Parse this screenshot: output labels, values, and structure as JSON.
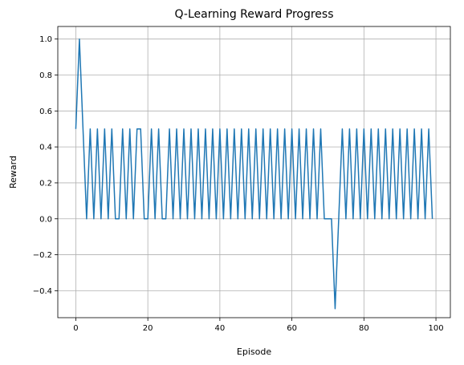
{
  "chart_data": {
    "type": "line",
    "title": "Q-Learning Reward Progress",
    "xlabel": "Episode",
    "ylabel": "Reward",
    "xlim": [
      -5,
      104
    ],
    "ylim": [
      -0.55,
      1.07
    ],
    "xticks": [
      0,
      20,
      40,
      60,
      80,
      100
    ],
    "yticks": [
      -0.4,
      -0.2,
      0.0,
      0.2,
      0.4,
      0.6,
      0.8,
      1.0
    ],
    "ytick_labels": [
      "−0.4",
      "−0.2",
      "0.0",
      "0.2",
      "0.4",
      "0.6",
      "0.8",
      "1.0"
    ],
    "grid": true,
    "line_color": "#1f77b4",
    "series": [
      {
        "x": [
          0,
          1,
          2,
          3,
          4,
          5,
          6,
          7,
          8,
          9,
          10,
          11,
          12,
          13,
          14,
          15,
          16,
          17,
          18,
          19,
          20,
          21,
          22,
          23,
          24,
          25,
          26,
          27,
          28,
          29,
          30,
          31,
          32,
          33,
          34,
          35,
          36,
          37,
          38,
          39,
          40,
          41,
          42,
          43,
          44,
          45,
          46,
          47,
          48,
          49,
          50,
          51,
          52,
          53,
          54,
          55,
          56,
          57,
          58,
          59,
          60,
          61,
          62,
          63,
          64,
          65,
          66,
          67,
          68,
          69,
          70,
          71,
          72,
          73,
          74,
          75,
          76,
          77,
          78,
          79,
          80,
          81,
          82,
          83,
          84,
          85,
          86,
          87,
          88,
          89,
          90,
          91,
          92,
          93,
          94,
          95,
          96,
          97,
          98,
          99
        ],
        "y": [
          0.5,
          1.0,
          0.5,
          0.0,
          0.5,
          0.0,
          0.5,
          0.0,
          0.5,
          0.0,
          0.5,
          0.0,
          0.0,
          0.5,
          0.0,
          0.5,
          0.0,
          0.5,
          0.5,
          0.0,
          0.0,
          0.5,
          0.0,
          0.5,
          0.0,
          0.0,
          0.5,
          0.0,
          0.5,
          0.0,
          0.5,
          0.0,
          0.5,
          0.0,
          0.5,
          0.0,
          0.5,
          0.0,
          0.5,
          0.0,
          0.5,
          0.0,
          0.5,
          0.0,
          0.5,
          0.0,
          0.5,
          0.0,
          0.5,
          0.0,
          0.5,
          0.0,
          0.5,
          0.0,
          0.5,
          0.0,
          0.5,
          0.0,
          0.5,
          0.0,
          0.5,
          0.0,
          0.5,
          0.0,
          0.5,
          0.0,
          0.5,
          0.0,
          0.5,
          0.0,
          0.0,
          0.0,
          -0.5,
          0.0,
          0.5,
          0.0,
          0.5,
          0.0,
          0.5,
          0.0,
          0.5,
          0.0,
          0.5,
          0.0,
          0.5,
          0.0,
          0.5,
          0.0,
          0.5,
          0.0,
          0.5,
          0.0,
          0.5,
          0.0,
          0.5,
          0.0,
          0.5,
          0.0,
          0.5,
          0.0
        ]
      }
    ]
  }
}
